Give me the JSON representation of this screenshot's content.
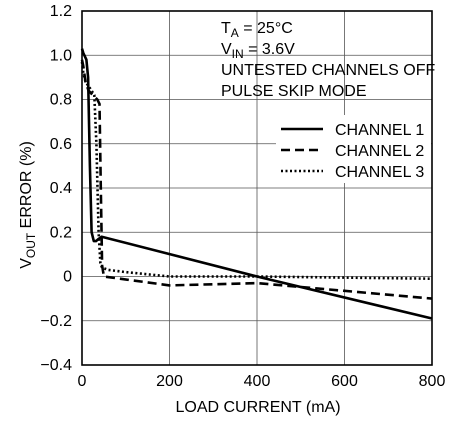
{
  "chart_data": {
    "type": "line",
    "xlabel": "LOAD CURRENT (mA)",
    "ylabel": "VOUT ERROR (%)",
    "ylabel_main": "V",
    "ylabel_sub": "OUT",
    "ylabel_rest": " ERROR (%)",
    "xlim": [
      0,
      800
    ],
    "ylim": [
      -0.4,
      1.2
    ],
    "xticks": [
      0,
      200,
      400,
      600,
      800
    ],
    "xtick_labels": [
      "0",
      "200",
      "400",
      "600",
      "800"
    ],
    "yticks": [
      -0.4,
      -0.2,
      0,
      0.2,
      0.4,
      0.6,
      0.8,
      1.0,
      1.2
    ],
    "ytick_labels": [
      "−0.4",
      "−0.2",
      "0",
      "0.2",
      "0.4",
      "0.6",
      "0.8",
      "1.0",
      "1.2"
    ],
    "grid": true,
    "annotations": [
      {
        "main": "T",
        "sub": "A",
        "rest": " = 25°C"
      },
      {
        "main": "V",
        "sub": "IN",
        "rest": " = 3.6V"
      },
      {
        "main": "UNTESTED CHANNELS OFF",
        "sub": "",
        "rest": ""
      },
      {
        "main": "PULSE SKIP MODE",
        "sub": "",
        "rest": ""
      }
    ],
    "legend_position": "right",
    "series": [
      {
        "name": "CHANNEL 1",
        "style": "solid",
        "x": [
          0,
          3,
          10,
          14,
          18,
          22,
          27,
          32,
          38,
          45,
          400,
          800
        ],
        "y": [
          1.03,
          1.01,
          0.98,
          0.9,
          0.5,
          0.2,
          0.16,
          0.16,
          0.17,
          0.18,
          0.0,
          -0.19
        ]
      },
      {
        "name": "CHANNEL 2",
        "style": "dashed",
        "x": [
          0,
          3,
          8,
          15,
          25,
          35,
          40,
          43,
          46,
          50,
          200,
          400,
          800
        ],
        "y": [
          0.98,
          0.95,
          0.88,
          0.84,
          0.82,
          0.8,
          0.78,
          0.4,
          0.05,
          0.0,
          -0.04,
          -0.03,
          -0.1
        ]
      },
      {
        "name": "CHANNEL 3",
        "style": "dotted",
        "x": [
          0,
          3,
          8,
          15,
          22,
          28,
          33,
          38,
          42,
          46,
          60,
          100,
          200,
          400,
          800
        ],
        "y": [
          0.97,
          0.92,
          0.88,
          0.86,
          0.84,
          0.82,
          0.6,
          0.2,
          0.06,
          0.04,
          0.03,
          0.02,
          0.0,
          0.0,
          -0.01
        ]
      }
    ]
  }
}
